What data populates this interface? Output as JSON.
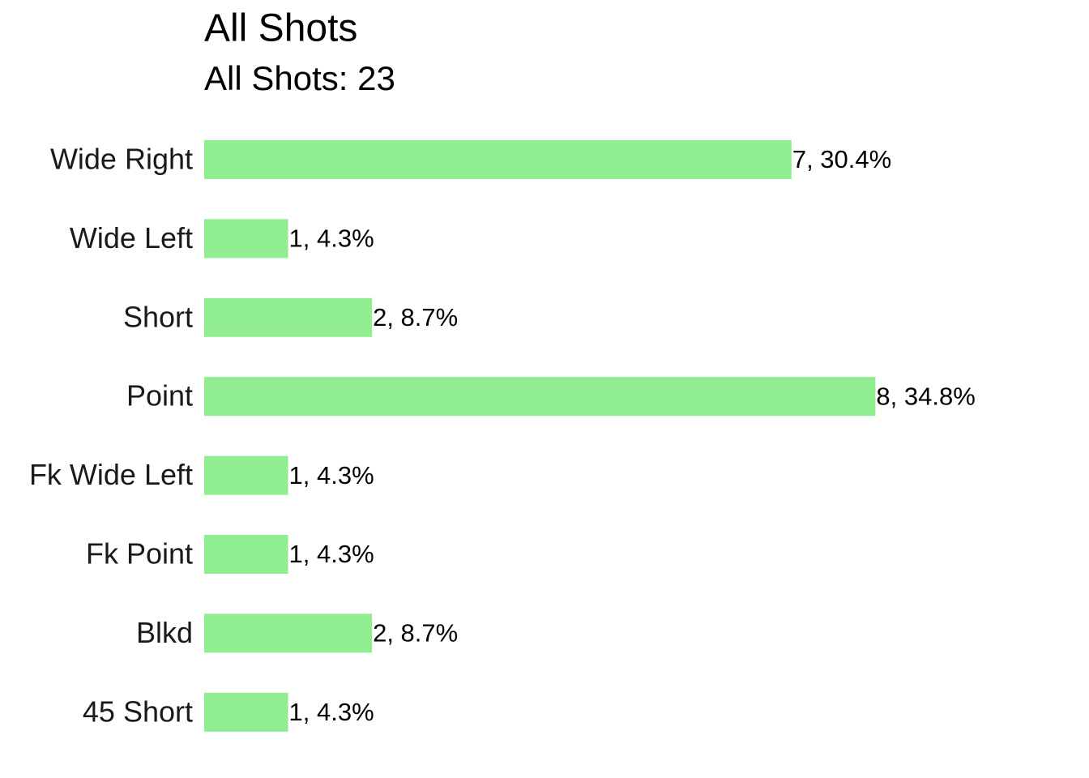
{
  "chart_data": {
    "type": "hbar",
    "title": "All Shots",
    "subtitle": "All Shots: 23",
    "categories": [
      "Wide Right",
      "Wide Left",
      "Short",
      "Point",
      "Fk Wide Left",
      "Fk Point",
      "Blkd",
      "45 Short"
    ],
    "values": [
      7,
      1,
      2,
      8,
      1,
      1,
      2,
      1
    ],
    "value_labels": [
      "7, 30.4%",
      "1, 4.3%",
      "2, 8.7%",
      "8, 34.8%",
      "1, 4.3%",
      "1, 4.3%",
      "2, 8.7%",
      "1, 4.3%"
    ],
    "color": "#90ee90"
  }
}
